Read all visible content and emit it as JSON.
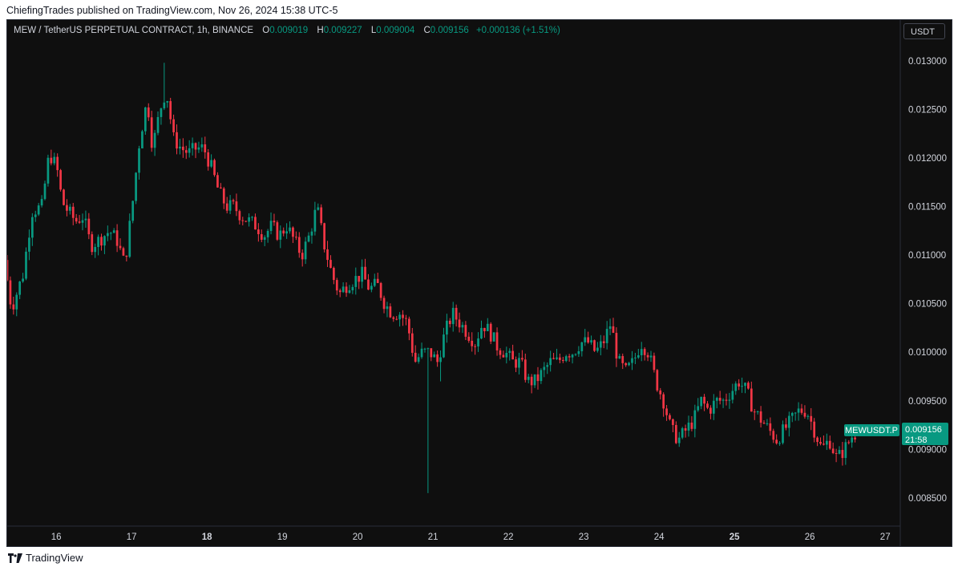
{
  "header": {
    "text": "ChiefingTrades published on TradingView.com, Nov 26, 2024 15:38 UTC-5"
  },
  "legend": {
    "symbol": "MEW / TetherUS PERPETUAL CONTRACT, 1h, BINANCE",
    "o_label": "O",
    "o_value": "0.009019",
    "h_label": "H",
    "h_value": "0.009227",
    "l_label": "L",
    "l_value": "0.009004",
    "c_label": "C",
    "c_value": "0.009156",
    "change": "+0.000136 (+1.51%)"
  },
  "currency_button": {
    "label": "USDT"
  },
  "price_tag": {
    "symbol": "MEWUSDT.P",
    "price": "0.009156",
    "countdown": "21:58"
  },
  "footer": {
    "brand": "TradingView"
  },
  "colors": {
    "up": "#089981",
    "down": "#f23645",
    "background": "#0f0f0f",
    "axis_text": "#d1d4dc"
  },
  "chart_data": {
    "type": "candlestick",
    "y_ticks": [
      "0.013000",
      "0.012500",
      "0.012000",
      "0.011500",
      "0.011000",
      "0.010500",
      "0.010000",
      "0.009500",
      "0.009000",
      "0.008500"
    ],
    "ylim": [
      0.00821,
      0.01342
    ],
    "x_ticks": [
      {
        "label": "16",
        "bold": false
      },
      {
        "label": "17",
        "bold": false
      },
      {
        "label": "18",
        "bold": true
      },
      {
        "label": "19",
        "bold": false
      },
      {
        "label": "20",
        "bold": false
      },
      {
        "label": "21",
        "bold": false
      },
      {
        "label": "22",
        "bold": false
      },
      {
        "label": "23",
        "bold": false
      },
      {
        "label": "24",
        "bold": false
      },
      {
        "label": "25",
        "bold": true
      },
      {
        "label": "26",
        "bold": false
      },
      {
        "label": "27",
        "bold": false
      }
    ],
    "xlim_days": [
      15.35,
      27.2
    ],
    "path_points": [
      [
        15.35,
        0.01095
      ],
      [
        15.45,
        0.01045
      ],
      [
        15.6,
        0.0108
      ],
      [
        15.72,
        0.01145
      ],
      [
        15.85,
        0.0115
      ],
      [
        15.95,
        0.01205
      ],
      [
        16.05,
        0.0119
      ],
      [
        16.12,
        0.01155
      ],
      [
        16.2,
        0.01145
      ],
      [
        16.3,
        0.01135
      ],
      [
        16.4,
        0.0114
      ],
      [
        16.5,
        0.0111
      ],
      [
        16.6,
        0.01115
      ],
      [
        16.75,
        0.01125
      ],
      [
        16.85,
        0.01115
      ],
      [
        16.95,
        0.0109
      ],
      [
        17.05,
        0.0115
      ],
      [
        17.15,
        0.0122
      ],
      [
        17.25,
        0.0126
      ],
      [
        17.32,
        0.0121
      ],
      [
        17.42,
        0.0125
      ],
      [
        17.5,
        0.0127
      ],
      [
        17.6,
        0.0122
      ],
      [
        17.7,
        0.0121
      ],
      [
        17.8,
        0.01205
      ],
      [
        17.9,
        0.0121
      ],
      [
        18.0,
        0.0121
      ],
      [
        18.1,
        0.0119
      ],
      [
        18.2,
        0.01165
      ],
      [
        18.3,
        0.0115
      ],
      [
        18.4,
        0.0115
      ],
      [
        18.5,
        0.0114
      ],
      [
        18.6,
        0.01135
      ],
      [
        18.7,
        0.0113
      ],
      [
        18.8,
        0.0112
      ],
      [
        18.9,
        0.0113
      ],
      [
        19.0,
        0.0112
      ],
      [
        19.1,
        0.0113
      ],
      [
        19.2,
        0.01115
      ],
      [
        19.3,
        0.011
      ],
      [
        19.4,
        0.0112
      ],
      [
        19.5,
        0.0115
      ],
      [
        19.6,
        0.0111
      ],
      [
        19.7,
        0.0108
      ],
      [
        19.8,
        0.0106
      ],
      [
        19.9,
        0.0107
      ],
      [
        20.0,
        0.01075
      ],
      [
        20.1,
        0.0108
      ],
      [
        20.2,
        0.01065
      ],
      [
        20.3,
        0.0107
      ],
      [
        20.4,
        0.0105
      ],
      [
        20.5,
        0.0104
      ],
      [
        20.6,
        0.0104
      ],
      [
        20.7,
        0.0103
      ],
      [
        20.8,
        0.0099
      ],
      [
        20.9,
        0.01
      ],
      [
        21.0,
        0.01
      ],
      [
        21.1,
        0.0099
      ],
      [
        21.2,
        0.0102
      ],
      [
        21.3,
        0.0104
      ],
      [
        21.4,
        0.0103
      ],
      [
        21.5,
        0.0102
      ],
      [
        21.6,
        0.0101
      ],
      [
        21.7,
        0.0103
      ],
      [
        21.8,
        0.0102
      ],
      [
        21.9,
        0.01005
      ],
      [
        22.0,
        0.01
      ],
      [
        22.1,
        0.0099
      ],
      [
        22.2,
        0.0099
      ],
      [
        22.3,
        0.0097
      ],
      [
        22.4,
        0.0097
      ],
      [
        22.5,
        0.0098
      ],
      [
        22.6,
        0.0099
      ],
      [
        22.7,
        0.0099
      ],
      [
        22.8,
        0.01
      ],
      [
        22.9,
        0.01
      ],
      [
        23.0,
        0.0101
      ],
      [
        23.1,
        0.0101
      ],
      [
        23.2,
        0.01
      ],
      [
        23.3,
        0.0101
      ],
      [
        23.4,
        0.0103
      ],
      [
        23.5,
        0.0099
      ],
      [
        23.6,
        0.0098
      ],
      [
        23.7,
        0.0099
      ],
      [
        23.8,
        0.0101
      ],
      [
        23.9,
        0.01
      ],
      [
        24.0,
        0.0097
      ],
      [
        24.1,
        0.0095
      ],
      [
        24.2,
        0.0092
      ],
      [
        24.3,
        0.0091
      ],
      [
        24.4,
        0.0092
      ],
      [
        24.5,
        0.0093
      ],
      [
        24.6,
        0.0095
      ],
      [
        24.7,
        0.0094
      ],
      [
        24.8,
        0.0095
      ],
      [
        24.9,
        0.0095
      ],
      [
        25.0,
        0.0096
      ],
      [
        25.1,
        0.0097
      ],
      [
        25.2,
        0.0096
      ],
      [
        25.3,
        0.0094
      ],
      [
        25.4,
        0.0093
      ],
      [
        25.5,
        0.0092
      ],
      [
        25.6,
        0.0091
      ],
      [
        25.7,
        0.0092
      ],
      [
        25.8,
        0.0093
      ],
      [
        25.9,
        0.0094
      ],
      [
        26.0,
        0.0094
      ],
      [
        26.1,
        0.0092
      ],
      [
        26.2,
        0.009
      ],
      [
        26.3,
        0.0091
      ],
      [
        26.4,
        0.0089
      ],
      [
        26.5,
        0.009
      ],
      [
        26.62,
        0.00916
      ]
    ],
    "notable_wicks": [
      {
        "day": 17.45,
        "high": 0.01298
      },
      {
        "day": 20.95,
        "low": 0.00855
      },
      {
        "day": 21.1,
        "low": 0.0097
      }
    ]
  }
}
